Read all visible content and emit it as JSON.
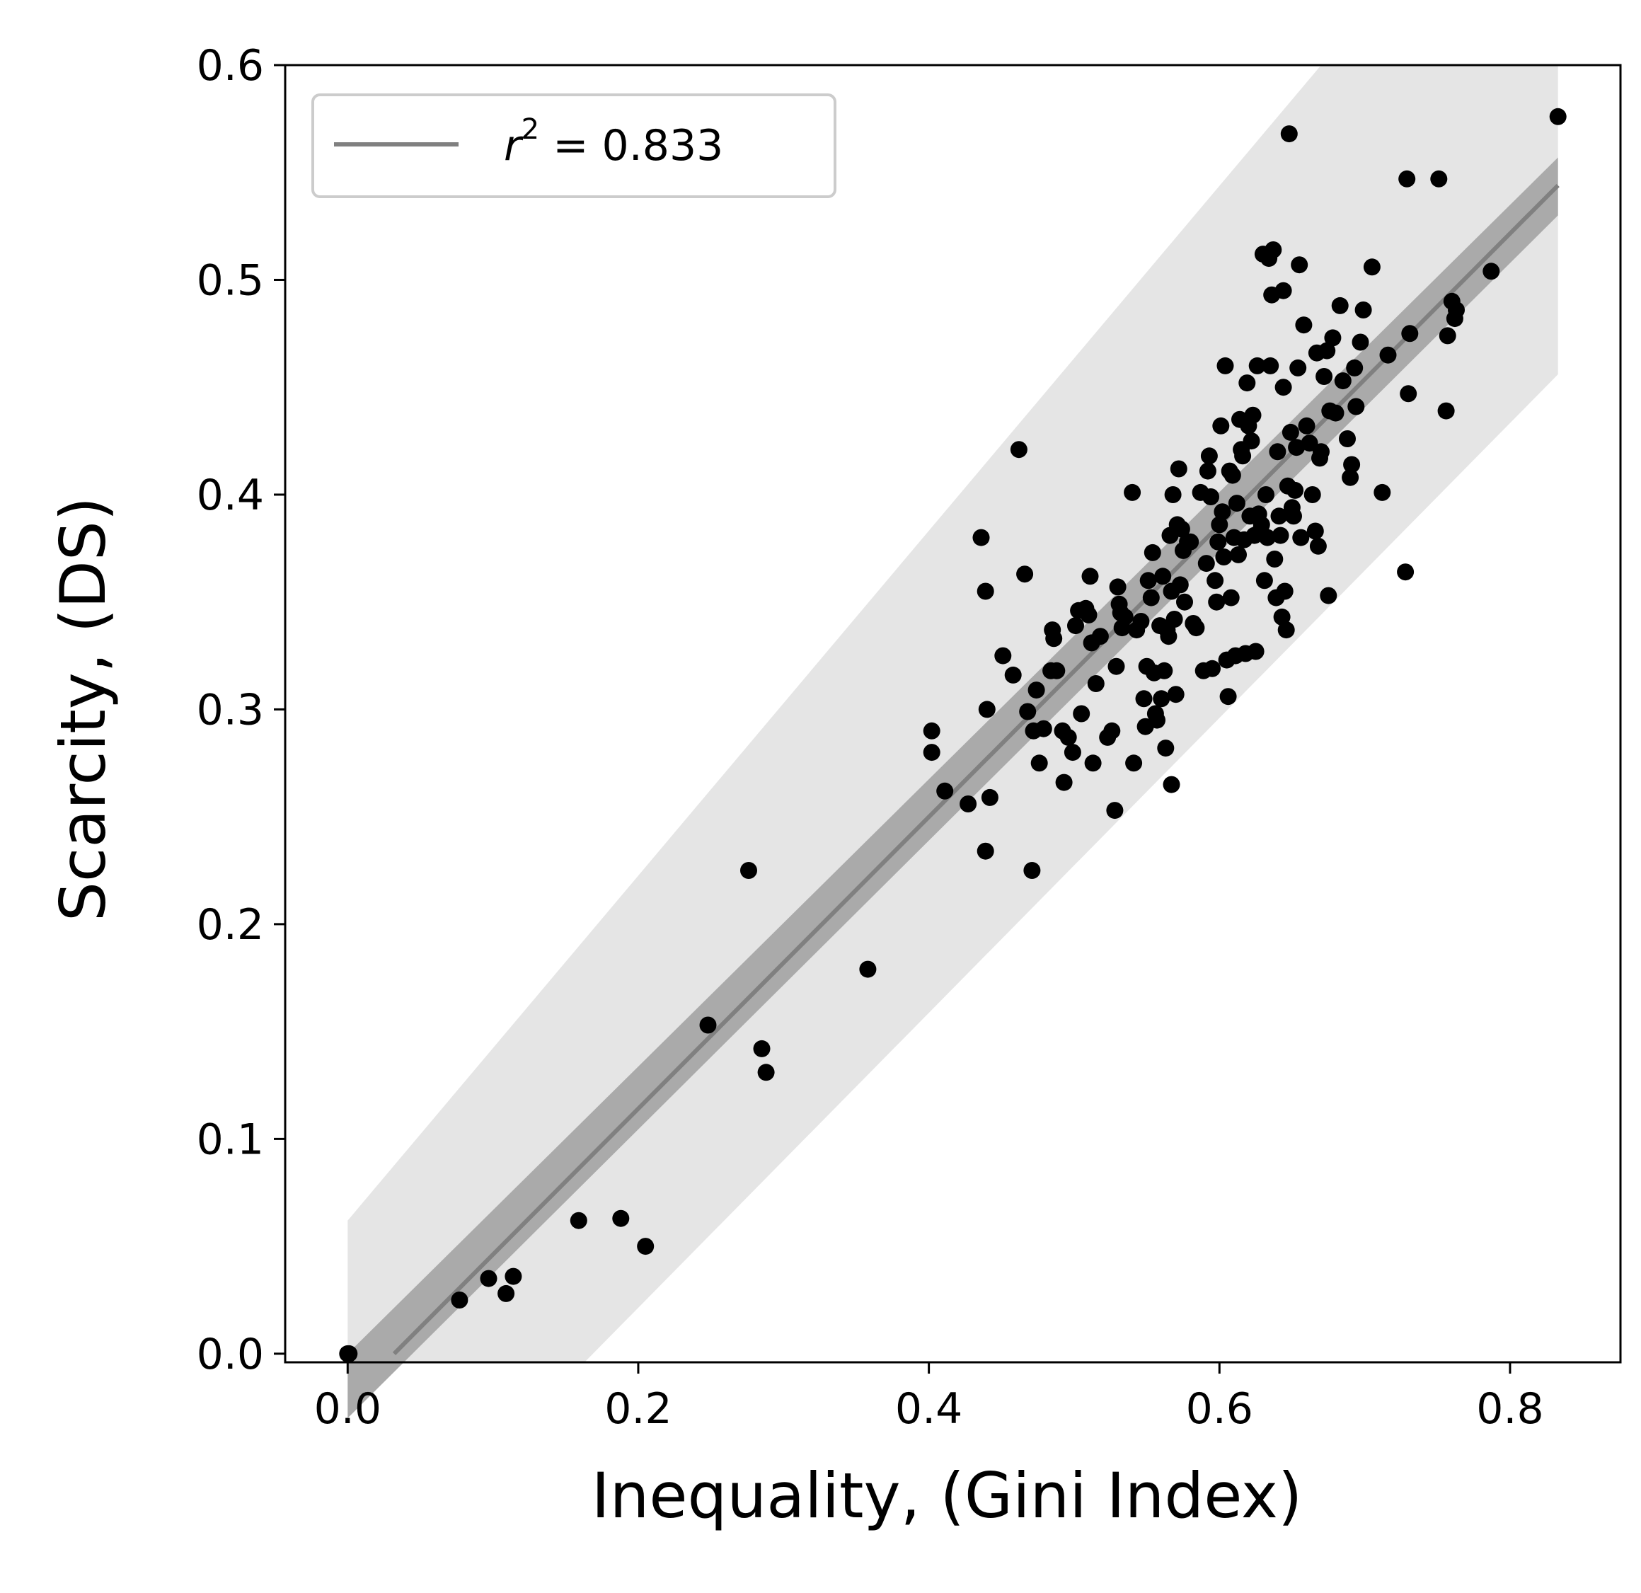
{
  "chart_data": {
    "type": "scatter",
    "xlabel": "Inequality, (Gini Index)",
    "ylabel": "Scarcity, (DS)",
    "xlim": [
      -0.043,
      0.876
    ],
    "ylim": [
      -0.004,
      0.6
    ],
    "xticks": [
      0.0,
      0.2,
      0.4,
      0.6,
      0.8
    ],
    "yticks": [
      0.0,
      0.1,
      0.2,
      0.3,
      0.4,
      0.5,
      0.6
    ],
    "xtick_labels": [
      "0.0",
      "0.2",
      "0.4",
      "0.6",
      "0.8"
    ],
    "ytick_labels": [
      "0.0",
      "0.1",
      "0.2",
      "0.3",
      "0.4",
      "0.5",
      "0.6"
    ],
    "grid": false,
    "legend": {
      "placement": "top-left",
      "r_symbol": "r",
      "r_exponent": "2",
      "label_rest": " = 0.833"
    },
    "regression": {
      "r2": 0.833,
      "x_range": [
        0.0,
        0.833
      ],
      "line": [
        [
          0.032,
          0.0
        ],
        [
          0.833,
          0.544
        ]
      ],
      "confidence_band": [
        [
          0.0,
          -0.03
        ],
        [
          0.0,
          0.0
        ],
        [
          0.833,
          0.557
        ],
        [
          0.833,
          0.53
        ]
      ],
      "prediction_band": {
        "upper": [
          [
            0.0,
            0.062
          ],
          [
            0.67,
            0.6
          ],
          [
            0.833,
            0.6
          ]
        ],
        "lower": [
          [
            0.0,
            -0.004
          ],
          [
            0.163,
            -0.004
          ],
          [
            0.833,
            0.456
          ]
        ]
      }
    },
    "colors": {
      "points": "#000000",
      "line": "#808080",
      "ci_band": "#aaaaaa",
      "pi_band": "#e5e5e5"
    },
    "points": [
      [
        0.0,
        0.0
      ],
      [
        0.001,
        0.0
      ],
      [
        0.077,
        0.025
      ],
      [
        0.097,
        0.035
      ],
      [
        0.109,
        0.028
      ],
      [
        0.114,
        0.036
      ],
      [
        0.159,
        0.062
      ],
      [
        0.188,
        0.063
      ],
      [
        0.205,
        0.05
      ],
      [
        0.248,
        0.153
      ],
      [
        0.276,
        0.225
      ],
      [
        0.285,
        0.142
      ],
      [
        0.288,
        0.131
      ],
      [
        0.358,
        0.179
      ],
      [
        0.402,
        0.29
      ],
      [
        0.402,
        0.28
      ],
      [
        0.411,
        0.262
      ],
      [
        0.427,
        0.256
      ],
      [
        0.436,
        0.38
      ],
      [
        0.439,
        0.355
      ],
      [
        0.44,
        0.3
      ],
      [
        0.439,
        0.234
      ],
      [
        0.442,
        0.259
      ],
      [
        0.451,
        0.325
      ],
      [
        0.458,
        0.316
      ],
      [
        0.462,
        0.421
      ],
      [
        0.466,
        0.363
      ],
      [
        0.468,
        0.299
      ],
      [
        0.471,
        0.225
      ],
      [
        0.472,
        0.29
      ],
      [
        0.474,
        0.309
      ],
      [
        0.476,
        0.275
      ],
      [
        0.479,
        0.291
      ],
      [
        0.484,
        0.318
      ],
      [
        0.485,
        0.337
      ],
      [
        0.486,
        0.333
      ],
      [
        0.488,
        0.318
      ],
      [
        0.492,
        0.29
      ],
      [
        0.493,
        0.266
      ],
      [
        0.496,
        0.287
      ],
      [
        0.499,
        0.28
      ],
      [
        0.501,
        0.339
      ],
      [
        0.503,
        0.346
      ],
      [
        0.505,
        0.298
      ],
      [
        0.508,
        0.347
      ],
      [
        0.51,
        0.344
      ],
      [
        0.511,
        0.362
      ],
      [
        0.512,
        0.331
      ],
      [
        0.513,
        0.275
      ],
      [
        0.515,
        0.312
      ],
      [
        0.518,
        0.334
      ],
      [
        0.523,
        0.287
      ],
      [
        0.526,
        0.29
      ],
      [
        0.528,
        0.253
      ],
      [
        0.529,
        0.32
      ],
      [
        0.53,
        0.357
      ],
      [
        0.531,
        0.349
      ],
      [
        0.532,
        0.345
      ],
      [
        0.533,
        0.338
      ],
      [
        0.535,
        0.343
      ],
      [
        0.54,
        0.401
      ],
      [
        0.541,
        0.275
      ],
      [
        0.543,
        0.337
      ],
      [
        0.546,
        0.341
      ],
      [
        0.548,
        0.305
      ],
      [
        0.549,
        0.292
      ],
      [
        0.55,
        0.32
      ],
      [
        0.551,
        0.36
      ],
      [
        0.553,
        0.352
      ],
      [
        0.554,
        0.373
      ],
      [
        0.555,
        0.317
      ],
      [
        0.556,
        0.298
      ],
      [
        0.557,
        0.295
      ],
      [
        0.559,
        0.339
      ],
      [
        0.56,
        0.305
      ],
      [
        0.561,
        0.362
      ],
      [
        0.562,
        0.318
      ],
      [
        0.563,
        0.282
      ],
      [
        0.564,
        0.337
      ],
      [
        0.565,
        0.334
      ],
      [
        0.566,
        0.381
      ],
      [
        0.567,
        0.265
      ],
      [
        0.567,
        0.355
      ],
      [
        0.568,
        0.4
      ],
      [
        0.569,
        0.342
      ],
      [
        0.57,
        0.307
      ],
      [
        0.571,
        0.386
      ],
      [
        0.572,
        0.412
      ],
      [
        0.573,
        0.358
      ],
      [
        0.574,
        0.384
      ],
      [
        0.575,
        0.374
      ],
      [
        0.576,
        0.35
      ],
      [
        0.578,
        0.378
      ],
      [
        0.58,
        0.378
      ],
      [
        0.582,
        0.34
      ],
      [
        0.584,
        0.338
      ],
      [
        0.587,
        0.401
      ],
      [
        0.589,
        0.318
      ],
      [
        0.591,
        0.368
      ],
      [
        0.592,
        0.411
      ],
      [
        0.593,
        0.418
      ],
      [
        0.594,
        0.399
      ],
      [
        0.595,
        0.319
      ],
      [
        0.597,
        0.36
      ],
      [
        0.598,
        0.35
      ],
      [
        0.599,
        0.378
      ],
      [
        0.6,
        0.386
      ],
      [
        0.601,
        0.432
      ],
      [
        0.602,
        0.392
      ],
      [
        0.603,
        0.371
      ],
      [
        0.604,
        0.46
      ],
      [
        0.605,
        0.323
      ],
      [
        0.606,
        0.306
      ],
      [
        0.607,
        0.411
      ],
      [
        0.608,
        0.352
      ],
      [
        0.609,
        0.409
      ],
      [
        0.61,
        0.38
      ],
      [
        0.611,
        0.325
      ],
      [
        0.612,
        0.396
      ],
      [
        0.613,
        0.372
      ],
      [
        0.614,
        0.435
      ],
      [
        0.615,
        0.421
      ],
      [
        0.616,
        0.418
      ],
      [
        0.617,
        0.379
      ],
      [
        0.618,
        0.326
      ],
      [
        0.619,
        0.452
      ],
      [
        0.62,
        0.432
      ],
      [
        0.621,
        0.39
      ],
      [
        0.622,
        0.425
      ],
      [
        0.623,
        0.437
      ],
      [
        0.624,
        0.381
      ],
      [
        0.625,
        0.327
      ],
      [
        0.626,
        0.46
      ],
      [
        0.627,
        0.391
      ],
      [
        0.628,
        0.383
      ],
      [
        0.629,
        0.386
      ],
      [
        0.63,
        0.512
      ],
      [
        0.631,
        0.36
      ],
      [
        0.632,
        0.4
      ],
      [
        0.633,
        0.38
      ],
      [
        0.634,
        0.51
      ],
      [
        0.635,
        0.46
      ],
      [
        0.636,
        0.493
      ],
      [
        0.637,
        0.514
      ],
      [
        0.638,
        0.37
      ],
      [
        0.639,
        0.352
      ],
      [
        0.64,
        0.42
      ],
      [
        0.641,
        0.39
      ],
      [
        0.642,
        0.381
      ],
      [
        0.643,
        0.343
      ],
      [
        0.644,
        0.495
      ],
      [
        0.644,
        0.45
      ],
      [
        0.645,
        0.355
      ],
      [
        0.646,
        0.337
      ],
      [
        0.647,
        0.404
      ],
      [
        0.648,
        0.568
      ],
      [
        0.649,
        0.429
      ],
      [
        0.65,
        0.394
      ],
      [
        0.651,
        0.39
      ],
      [
        0.652,
        0.402
      ],
      [
        0.653,
        0.422
      ],
      [
        0.654,
        0.459
      ],
      [
        0.655,
        0.507
      ],
      [
        0.656,
        0.38
      ],
      [
        0.658,
        0.479
      ],
      [
        0.66,
        0.432
      ],
      [
        0.662,
        0.424
      ],
      [
        0.664,
        0.4
      ],
      [
        0.666,
        0.383
      ],
      [
        0.667,
        0.466
      ],
      [
        0.668,
        0.376
      ],
      [
        0.669,
        0.417
      ],
      [
        0.67,
        0.42
      ],
      [
        0.672,
        0.455
      ],
      [
        0.674,
        0.467
      ],
      [
        0.675,
        0.353
      ],
      [
        0.676,
        0.439
      ],
      [
        0.678,
        0.473
      ],
      [
        0.68,
        0.438
      ],
      [
        0.683,
        0.488
      ],
      [
        0.685,
        0.453
      ],
      [
        0.688,
        0.426
      ],
      [
        0.69,
        0.408
      ],
      [
        0.691,
        0.414
      ],
      [
        0.693,
        0.459
      ],
      [
        0.694,
        0.441
      ],
      [
        0.697,
        0.471
      ],
      [
        0.699,
        0.486
      ],
      [
        0.705,
        0.506
      ],
      [
        0.712,
        0.401
      ],
      [
        0.716,
        0.465
      ],
      [
        0.728,
        0.364
      ],
      [
        0.729,
        0.547
      ],
      [
        0.73,
        0.447
      ],
      [
        0.731,
        0.475
      ],
      [
        0.751,
        0.547
      ],
      [
        0.756,
        0.439
      ],
      [
        0.757,
        0.474
      ],
      [
        0.76,
        0.49
      ],
      [
        0.762,
        0.482
      ],
      [
        0.763,
        0.486
      ],
      [
        0.787,
        0.504
      ],
      [
        0.833,
        0.576
      ]
    ]
  }
}
